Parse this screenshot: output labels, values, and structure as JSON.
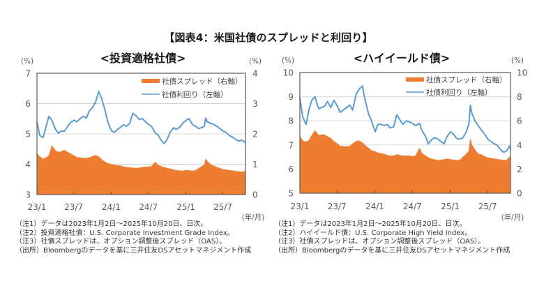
{
  "figure_title": "【図表4：米国社債のスプレッドと利回り】",
  "notes": {
    "ig": [
      "（注1）データは2023年1月2日～2025年10月20日、日次。",
      "（注2）投資適格社債：U.S. Corporate Investment Grade Index。",
      "（注3）社債スプレッドは、オプション調整後スプレッド（OAS）。",
      "（出所）Bloombergのデータを基に三井住友DSアセットマネジメント作成"
    ],
    "hy": [
      "（注1）データは2023年1月2日～2025年10月20日、日次。",
      "（注2）ハイイールド債：U.S. Corporate High Yield Index。",
      "（注3）社債スプレッドは、オプション調整後スプレッド（OAS）。",
      "（出所）Bloombergのデータを基に三井住友DSアセットマネジメント作成"
    ]
  },
  "chart_data": [
    {
      "id": "ig",
      "type": "line",
      "title": "<投資適格社債>",
      "xlabel": "(年/月)",
      "x": [
        "2023-01-02",
        "2023-01-16",
        "2023-02-01",
        "2023-02-16",
        "2023-03-01",
        "2023-03-16",
        "2023-04-03",
        "2023-04-17",
        "2023-05-01",
        "2023-05-16",
        "2023-06-01",
        "2023-06-16",
        "2023-07-03",
        "2023-07-17",
        "2023-08-01",
        "2023-08-16",
        "2023-09-01",
        "2023-09-15",
        "2023-10-02",
        "2023-10-16",
        "2023-11-01",
        "2023-11-16",
        "2023-12-01",
        "2023-12-15",
        "2024-01-02",
        "2024-01-16",
        "2024-02-01",
        "2024-02-16",
        "2024-03-01",
        "2024-03-15",
        "2024-04-01",
        "2024-04-16",
        "2024-05-01",
        "2024-05-16",
        "2024-06-03",
        "2024-06-17",
        "2024-07-01",
        "2024-07-16",
        "2024-08-05",
        "2024-08-16",
        "2024-09-03",
        "2024-09-16",
        "2024-10-01",
        "2024-10-16",
        "2024-11-01",
        "2024-11-15",
        "2024-12-02",
        "2024-12-16",
        "2025-01-02",
        "2025-01-16",
        "2025-02-03",
        "2025-02-18",
        "2025-03-03",
        "2025-03-17",
        "2025-04-01",
        "2025-04-08",
        "2025-04-16",
        "2025-05-01",
        "2025-05-16",
        "2025-06-02",
        "2025-06-16",
        "2025-07-01",
        "2025-07-16",
        "2025-08-01",
        "2025-08-15",
        "2025-09-02",
        "2025-09-16",
        "2025-10-01",
        "2025-10-15",
        "2025-10-20"
      ],
      "xticks": [
        "2023-01-02",
        "2023-07-01",
        "2024-01-01",
        "2024-07-01",
        "2025-01-01",
        "2025-07-01"
      ],
      "xtick_labels": [
        "23/1",
        "23/7",
        "24/1",
        "24/7",
        "25/1",
        "25/7"
      ],
      "y_left": {
        "label": "(%)",
        "range": [
          3,
          7
        ],
        "ticks": [
          3,
          4,
          5,
          6,
          7
        ]
      },
      "y_right": {
        "label": "(%)",
        "range": [
          0,
          4
        ],
        "ticks": [
          0,
          1,
          2,
          3,
          4
        ]
      },
      "grid": true,
      "legend": "top-right",
      "series": [
        {
          "name": "社債スプレッド（右軸）",
          "kind": "area",
          "axis": "right",
          "color": "#ED7D31",
          "values": [
            1.36,
            1.25,
            1.18,
            1.22,
            1.28,
            1.62,
            1.45,
            1.4,
            1.42,
            1.47,
            1.4,
            1.35,
            1.28,
            1.23,
            1.22,
            1.2,
            1.2,
            1.22,
            1.26,
            1.3,
            1.25,
            1.15,
            1.08,
            1.03,
            1.0,
            0.98,
            0.96,
            0.95,
            0.92,
            0.9,
            0.89,
            0.88,
            0.87,
            0.88,
            0.9,
            0.91,
            0.92,
            0.93,
            1.08,
            0.98,
            0.93,
            0.9,
            0.87,
            0.85,
            0.82,
            0.8,
            0.79,
            0.78,
            0.8,
            0.79,
            0.78,
            0.8,
            0.86,
            0.92,
            0.98,
            1.18,
            1.1,
            1.0,
            0.95,
            0.9,
            0.87,
            0.84,
            0.82,
            0.8,
            0.79,
            0.77,
            0.76,
            0.75,
            0.76,
            0.8
          ]
        },
        {
          "name": "社債利回り（左軸）",
          "kind": "line",
          "axis": "left",
          "color": "#5B9BD5",
          "values": [
            5.4,
            4.95,
            4.88,
            5.25,
            5.58,
            5.45,
            5.15,
            5.02,
            5.1,
            5.08,
            5.25,
            5.38,
            5.45,
            5.4,
            5.5,
            5.58,
            5.52,
            5.75,
            5.88,
            6.05,
            6.4,
            6.15,
            5.8,
            5.4,
            5.1,
            5.05,
            5.15,
            5.22,
            5.3,
            5.25,
            5.35,
            5.68,
            5.6,
            5.48,
            5.5,
            5.4,
            5.32,
            5.25,
            5.02,
            4.98,
            4.78,
            4.68,
            4.82,
            5.05,
            5.2,
            5.15,
            5.22,
            5.35,
            5.45,
            5.5,
            5.3,
            5.25,
            5.18,
            5.2,
            5.25,
            5.52,
            5.4,
            5.35,
            5.32,
            5.25,
            5.18,
            5.1,
            5.05,
            4.95,
            4.9,
            4.82,
            4.76,
            4.8,
            4.74,
            4.7
          ]
        }
      ]
    },
    {
      "id": "hy",
      "type": "line",
      "title": "<ハイイールド債>",
      "xlabel": "(年/月)",
      "x": [
        "2023-01-02",
        "2023-01-16",
        "2023-02-01",
        "2023-02-16",
        "2023-03-01",
        "2023-03-16",
        "2023-04-03",
        "2023-04-17",
        "2023-05-01",
        "2023-05-16",
        "2023-06-01",
        "2023-06-16",
        "2023-07-03",
        "2023-07-17",
        "2023-08-01",
        "2023-08-16",
        "2023-09-01",
        "2023-09-15",
        "2023-10-02",
        "2023-10-16",
        "2023-11-01",
        "2023-11-16",
        "2023-12-01",
        "2023-12-15",
        "2024-01-02",
        "2024-01-16",
        "2024-02-01",
        "2024-02-16",
        "2024-03-01",
        "2024-03-15",
        "2024-04-01",
        "2024-04-16",
        "2024-05-01",
        "2024-05-16",
        "2024-06-03",
        "2024-06-17",
        "2024-07-01",
        "2024-07-16",
        "2024-08-05",
        "2024-08-16",
        "2024-09-03",
        "2024-09-16",
        "2024-10-01",
        "2024-10-16",
        "2024-11-01",
        "2024-11-15",
        "2024-12-02",
        "2024-12-16",
        "2025-01-02",
        "2025-01-16",
        "2025-02-03",
        "2025-02-18",
        "2025-03-03",
        "2025-03-17",
        "2025-04-01",
        "2025-04-08",
        "2025-04-16",
        "2025-05-01",
        "2025-05-16",
        "2025-06-02",
        "2025-06-16",
        "2025-07-01",
        "2025-07-16",
        "2025-08-01",
        "2025-08-15",
        "2025-09-02",
        "2025-09-16",
        "2025-10-01",
        "2025-10-15",
        "2025-10-20"
      ],
      "xticks": [
        "2023-01-02",
        "2023-07-01",
        "2024-01-01",
        "2024-07-01",
        "2025-01-01",
        "2025-07-01"
      ],
      "xtick_labels": [
        "23/1",
        "23/7",
        "24/1",
        "24/7",
        "25/1",
        "25/7"
      ],
      "y_left": {
        "label": "(%)",
        "range": [
          5,
          10
        ],
        "ticks": [
          5,
          6,
          7,
          8,
          9,
          10
        ]
      },
      "y_right": {
        "label": "(%)",
        "range": [
          0,
          10
        ],
        "ticks": [
          0,
          2,
          4,
          6,
          8,
          10
        ]
      },
      "grid": true,
      "legend": "top-right",
      "series": [
        {
          "name": "社債スプレッド（右軸）",
          "kind": "area",
          "axis": "right",
          "color": "#ED7D31",
          "values": [
            4.75,
            4.35,
            4.25,
            4.4,
            4.8,
            5.2,
            4.8,
            4.85,
            4.85,
            4.7,
            4.55,
            4.3,
            4.1,
            3.9,
            3.9,
            3.85,
            3.9,
            4.1,
            4.3,
            4.35,
            4.2,
            3.95,
            3.75,
            3.55,
            3.45,
            3.35,
            3.3,
            3.25,
            3.15,
            3.1,
            3.1,
            3.2,
            3.15,
            3.1,
            3.1,
            3.1,
            3.05,
            3.1,
            3.75,
            3.3,
            3.1,
            2.95,
            2.85,
            2.8,
            2.72,
            2.75,
            2.8,
            2.85,
            2.8,
            2.75,
            2.72,
            2.78,
            3.0,
            3.2,
            3.5,
            4.5,
            4.0,
            3.6,
            3.25,
            3.2,
            3.05,
            2.95,
            2.9,
            2.85,
            2.82,
            2.78,
            2.72,
            2.75,
            3.0,
            3.05
          ]
        },
        {
          "name": "社債利回り（左軸）",
          "kind": "line",
          "axis": "left",
          "color": "#5B9BD5",
          "values": [
            8.95,
            8.15,
            7.85,
            8.5,
            8.85,
            9.0,
            8.5,
            8.55,
            8.6,
            8.8,
            8.55,
            8.85,
            8.6,
            8.35,
            8.45,
            8.55,
            8.65,
            8.45,
            9.1,
            9.3,
            9.45,
            8.8,
            8.3,
            8.0,
            7.55,
            7.85,
            7.85,
            7.8,
            7.85,
            7.7,
            7.75,
            8.25,
            8.05,
            7.85,
            8.0,
            7.95,
            7.9,
            7.8,
            7.9,
            7.6,
            7.35,
            7.05,
            7.2,
            7.3,
            7.25,
            7.15,
            7.05,
            7.35,
            7.55,
            7.45,
            7.25,
            7.25,
            7.3,
            7.5,
            7.85,
            8.65,
            8.3,
            8.0,
            7.8,
            7.6,
            7.45,
            7.25,
            7.15,
            7.05,
            7.0,
            6.8,
            6.7,
            6.75,
            6.95,
            6.8
          ]
        }
      ]
    }
  ]
}
